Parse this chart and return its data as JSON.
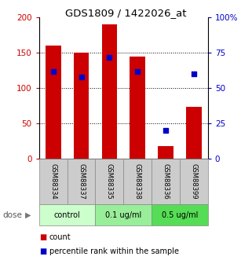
{
  "title": "GDS1809 / 1422026_at",
  "samples": [
    "GSM88334",
    "GSM88337",
    "GSM88335",
    "GSM88338",
    "GSM88336",
    "GSM88399"
  ],
  "bar_heights": [
    160,
    150,
    190,
    145,
    18,
    73
  ],
  "percentile_ranks": [
    62,
    58,
    72,
    62,
    20,
    60
  ],
  "bar_color": "#cc0000",
  "dot_color": "#0000cc",
  "left_ylim": [
    0,
    200
  ],
  "right_ylim": [
    0,
    100
  ],
  "left_yticks": [
    0,
    50,
    100,
    150,
    200
  ],
  "right_yticks": [
    0,
    25,
    50,
    75,
    100
  ],
  "right_yticklabels": [
    "0",
    "25",
    "50",
    "75",
    "100%"
  ],
  "grid_lines": [
    50,
    100,
    150
  ],
  "groups": [
    {
      "label": "control",
      "color": "#ccffcc",
      "start": 0,
      "end": 2
    },
    {
      "label": "0.1 ug/ml",
      "color": "#99ee99",
      "start": 2,
      "end": 4
    },
    {
      "label": "0.5 ug/ml",
      "color": "#55dd55",
      "start": 4,
      "end": 6
    }
  ],
  "dose_label": "dose",
  "legend_count_label": "count",
  "legend_percentile_label": "percentile rank within the sample",
  "left_tick_color": "#cc0000",
  "right_tick_color": "#0000cc",
  "sample_box_color": "#cccccc",
  "sample_box_edge": "#888888"
}
